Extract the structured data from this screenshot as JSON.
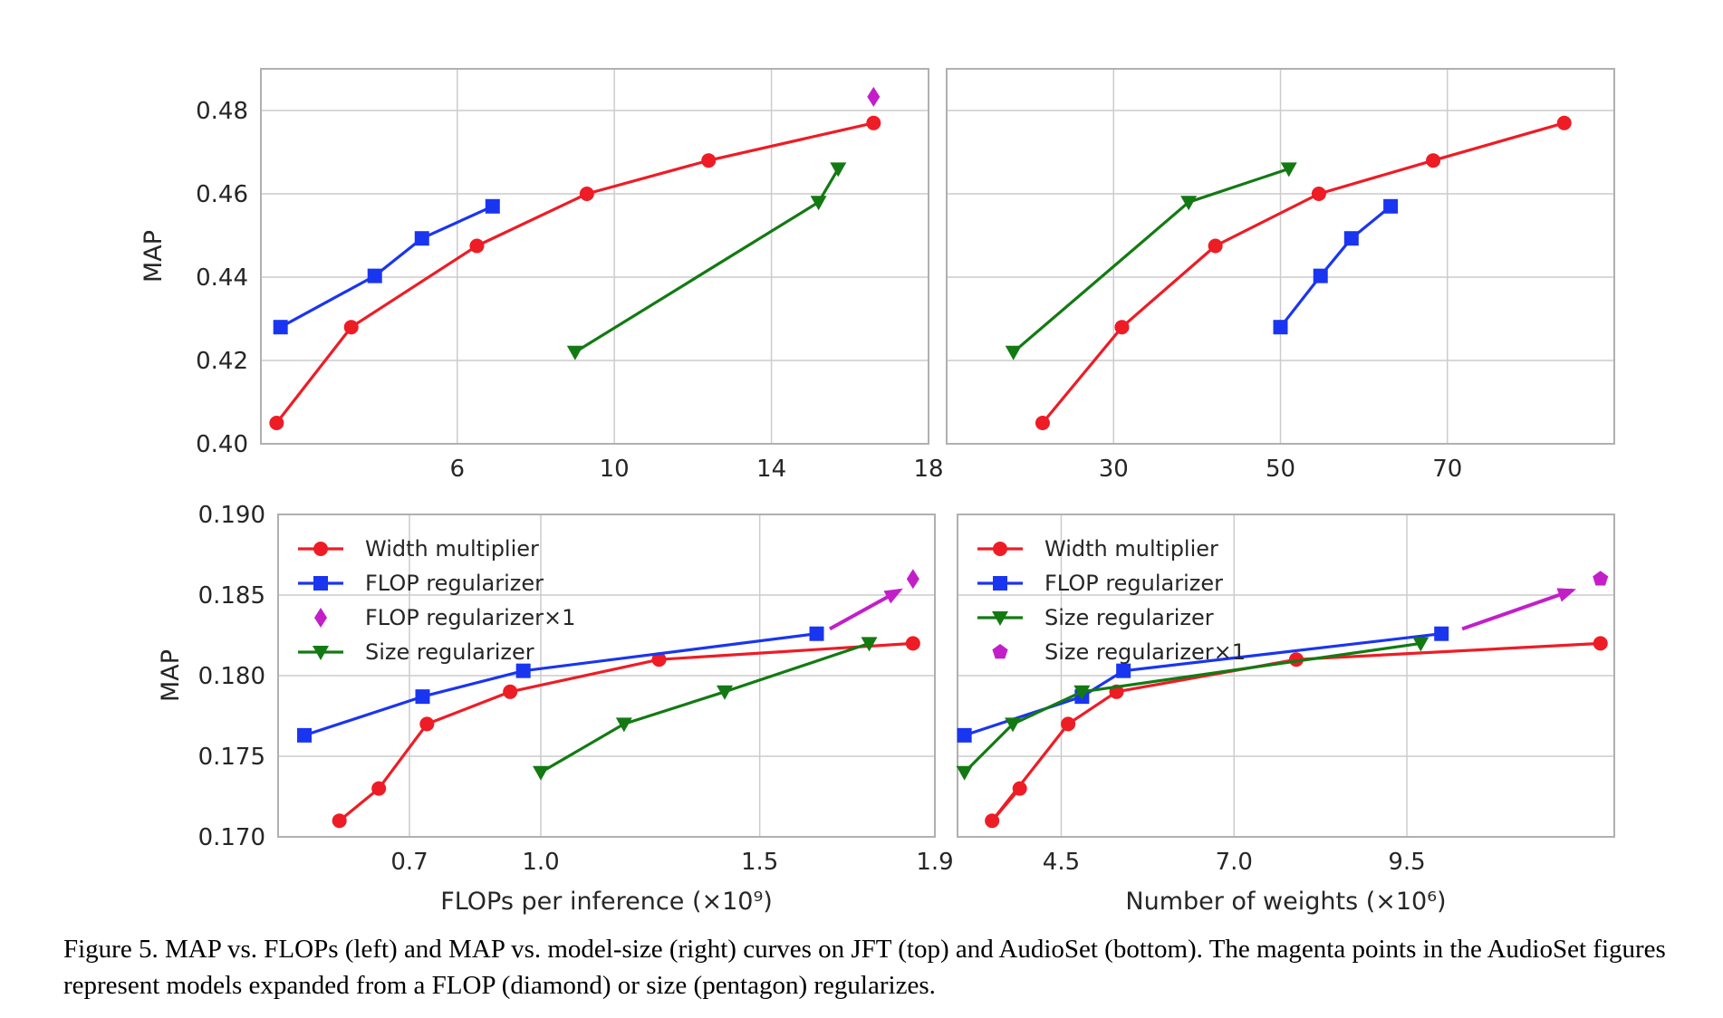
{
  "figure": {
    "caption": "Figure 5. MAP vs. FLOPs (left) and MAP vs. model-size (right) curves on JFT (top) and AudioSet (bottom). The magenta points in the AudioSet figures represent models expanded from a FLOP (diamond) or size (pentagon) regularizes."
  },
  "colors": {
    "red": "#ee1c25",
    "blue": "#1a35f0",
    "green": "#137a13",
    "magenta": "#c21fc9",
    "grid": "#cccccc",
    "frame": "#b0b0b0"
  },
  "chart_data": [
    {
      "id": "jft-flops",
      "type": "line",
      "xlim": [
        1.0,
        18.0
      ],
      "ylim": [
        0.4,
        0.49
      ],
      "xticks": [
        {
          "value": 6,
          "label": "6"
        },
        {
          "value": 10,
          "label": "10"
        },
        {
          "value": 14,
          "label": "14"
        },
        {
          "value": 18,
          "label": "18"
        }
      ],
      "yticks": [
        {
          "value": 0.4,
          "label": "0.40"
        },
        {
          "value": 0.42,
          "label": "0.42"
        },
        {
          "value": 0.44,
          "label": "0.44"
        },
        {
          "value": 0.46,
          "label": "0.46"
        },
        {
          "value": 0.48,
          "label": "0.48"
        }
      ],
      "xlabel": "",
      "ylabel": "MAP",
      "grid": true,
      "series": [
        {
          "color": "#ee1c25",
          "marker": "circle",
          "x": [
            1.4,
            3.3,
            6.5,
            9.3,
            12.4,
            16.6
          ],
          "y": [
            0.405,
            0.428,
            0.4475,
            0.46,
            0.468,
            0.477
          ]
        },
        {
          "color": "#1a35f0",
          "marker": "square",
          "x": [
            1.5,
            3.9,
            5.1,
            6.9
          ],
          "y": [
            0.428,
            0.4403,
            0.4493,
            0.457
          ]
        },
        {
          "color": "#137a13",
          "marker": "triangle-down",
          "x": [
            9.0,
            15.2,
            15.7
          ],
          "y": [
            0.422,
            0.458,
            0.466
          ]
        },
        {
          "color": "#c21fc9",
          "marker": "diamond",
          "x": [
            16.6
          ],
          "y": [
            0.4833
          ]
        }
      ]
    },
    {
      "id": "jft-weights",
      "type": "line",
      "xlim": [
        10,
        90
      ],
      "ylim": [
        0.4,
        0.49
      ],
      "xticks": [
        {
          "value": 30,
          "label": "30"
        },
        {
          "value": 50,
          "label": "50"
        },
        {
          "value": 70,
          "label": "70"
        }
      ],
      "yticks": [],
      "xlabel": "",
      "ylabel": "",
      "grid": true,
      "series": [
        {
          "color": "#ee1c25",
          "marker": "circle",
          "x": [
            21.5,
            31.0,
            42.2,
            54.6,
            68.3,
            84.0
          ],
          "y": [
            0.405,
            0.428,
            0.4475,
            0.46,
            0.468,
            0.477
          ]
        },
        {
          "color": "#1a35f0",
          "marker": "square",
          "x": [
            50.0,
            54.8,
            58.5,
            63.2
          ],
          "y": [
            0.428,
            0.4403,
            0.4493,
            0.457
          ]
        },
        {
          "color": "#137a13",
          "marker": "triangle-down",
          "x": [
            18.0,
            39.0,
            51.0
          ],
          "y": [
            0.422,
            0.458,
            0.466
          ]
        }
      ]
    },
    {
      "id": "audioset-flops",
      "type": "line",
      "xlim": [
        0.4,
        1.9
      ],
      "ylim": [
        0.17,
        0.19
      ],
      "xticks": [
        {
          "value": 0.7,
          "label": "0.7"
        },
        {
          "value": 1.0,
          "label": "1.0"
        },
        {
          "value": 1.5,
          "label": "1.5"
        },
        {
          "value": 1.9,
          "label": "1.9"
        }
      ],
      "yticks": [
        {
          "value": 0.17,
          "label": "0.170"
        },
        {
          "value": 0.175,
          "label": "0.175"
        },
        {
          "value": 0.18,
          "label": "0.180"
        },
        {
          "value": 0.185,
          "label": "0.185"
        },
        {
          "value": 0.19,
          "label": "0.190"
        }
      ],
      "xlabel": "FLOPs per inference (×10⁹)",
      "ylabel": "MAP",
      "grid": true,
      "legend": "top-left",
      "series": [
        {
          "name": "Width multiplier",
          "color": "#ee1c25",
          "marker": "circle",
          "x": [
            0.54,
            0.63,
            0.74,
            0.93,
            1.27,
            1.85
          ],
          "y": [
            0.171,
            0.173,
            0.177,
            0.179,
            0.181,
            0.182
          ]
        },
        {
          "name": "FLOP regularizer",
          "color": "#1a35f0",
          "marker": "square",
          "x": [
            0.46,
            0.73,
            0.96,
            1.63
          ],
          "y": [
            0.1763,
            0.1787,
            0.1803,
            0.1826
          ]
        },
        {
          "name": "FLOP regularizer×1",
          "color": "#c21fc9",
          "marker": "diamond",
          "x": [
            1.85
          ],
          "y": [
            0.186
          ]
        },
        {
          "name": "Size regularizer",
          "color": "#137a13",
          "marker": "triangle-down",
          "x": [
            1.0,
            1.19,
            1.42,
            1.75
          ],
          "y": [
            0.174,
            0.177,
            0.179,
            0.182
          ]
        }
      ],
      "arrow": {
        "color": "#c21fc9",
        "from": [
          1.66,
          0.1829
        ],
        "to": [
          1.82,
          0.1853
        ]
      }
    },
    {
      "id": "audioset-weights",
      "type": "line",
      "xlim": [
        3.0,
        12.5
      ],
      "ylim": [
        0.17,
        0.19
      ],
      "xticks": [
        {
          "value": 4.5,
          "label": "4.5"
        },
        {
          "value": 7.0,
          "label": "7.0"
        },
        {
          "value": 9.5,
          "label": "9.5"
        }
      ],
      "yticks": [],
      "xlabel": "Number of weights (×10⁶)",
      "ylabel": "",
      "grid": true,
      "legend": "top-left",
      "series": [
        {
          "name": "Width multiplier",
          "color": "#ee1c25",
          "marker": "circle",
          "x": [
            3.9,
            3.5,
            4.6,
            5.3,
            7.9,
            12.3
          ],
          "y": [
            0.173,
            0.171,
            0.177,
            0.179,
            0.181,
            0.182
          ]
        },
        {
          "name": "FLOP regularizer",
          "color": "#1a35f0",
          "marker": "square",
          "x": [
            3.1,
            4.8,
            5.4,
            10.0
          ],
          "y": [
            0.1763,
            0.1787,
            0.1803,
            0.1826
          ]
        },
        {
          "name": "Size regularizer",
          "color": "#137a13",
          "marker": "triangle-down",
          "x": [
            3.1,
            3.8,
            4.8,
            9.7
          ],
          "y": [
            0.174,
            0.177,
            0.179,
            0.182
          ]
        },
        {
          "name": "Size regularizer×1",
          "color": "#c21fc9",
          "marker": "pentagon",
          "x": [
            12.3
          ],
          "y": [
            0.186
          ]
        }
      ],
      "arrow": {
        "color": "#c21fc9",
        "from": [
          10.3,
          0.1829
        ],
        "to": [
          11.9,
          0.1853
        ]
      }
    }
  ]
}
